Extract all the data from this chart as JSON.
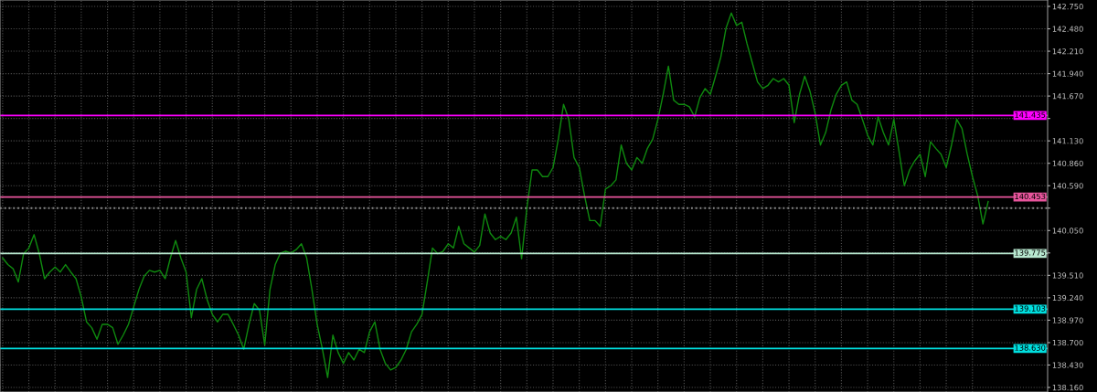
{
  "chart_data": {
    "type": "line",
    "tick_labels": "y",
    "grid": true,
    "ylim": [
      138.105,
      142.827
    ],
    "categories": [
      null,
      null,
      null,
      null,
      null,
      null,
      null,
      null,
      null,
      null,
      null,
      null,
      null,
      null,
      null,
      null,
      null,
      null,
      null,
      null,
      null,
      null,
      null,
      null,
      null,
      null,
      null,
      null,
      null,
      null,
      null,
      null,
      null,
      null,
      null,
      null,
      null,
      null,
      null,
      null,
      null,
      null,
      null,
      null,
      null,
      null,
      null,
      null,
      null,
      null,
      null,
      null,
      null,
      null,
      null,
      null,
      null,
      null,
      null,
      null,
      null,
      null,
      null,
      null,
      null,
      null,
      null,
      null,
      null,
      null,
      null,
      null,
      null,
      null,
      null,
      null,
      null,
      null,
      null,
      null,
      null,
      null,
      null,
      null,
      null,
      null,
      null,
      null,
      null,
      null,
      null,
      null,
      null,
      null,
      null,
      null,
      null,
      null,
      null,
      null,
      null,
      null,
      null,
      null,
      null,
      null,
      null,
      null,
      null,
      null,
      null,
      null,
      null,
      null,
      null,
      null,
      null,
      null,
      null,
      null,
      null,
      null,
      null,
      null,
      null,
      null,
      null,
      null,
      null,
      null,
      null,
      null,
      null,
      null,
      null,
      null,
      null,
      null,
      null,
      null,
      null,
      null,
      null,
      null,
      null,
      null,
      null,
      null,
      null,
      null,
      null,
      null,
      null,
      null,
      null,
      null,
      null,
      null,
      null,
      null,
      null,
      null,
      null,
      null,
      null,
      null,
      null,
      null,
      null,
      null,
      null,
      null,
      null,
      null,
      null,
      null,
      null,
      null,
      null,
      null,
      null,
      null,
      null,
      null,
      null,
      null,
      null,
      null,
      null
    ],
    "series": [
      {
        "color": "#0f8a0f",
        "values": [
          139.72,
          139.64,
          139.59,
          139.43,
          139.77,
          139.84,
          140.0,
          139.77,
          139.47,
          139.55,
          139.61,
          139.55,
          139.64,
          139.55,
          139.47,
          139.25,
          138.95,
          138.88,
          138.74,
          138.92,
          138.92,
          138.88,
          138.68,
          138.79,
          138.92,
          139.13,
          139.34,
          139.5,
          139.57,
          139.55,
          139.57,
          139.47,
          139.72,
          139.93,
          139.72,
          139.55,
          139.0,
          139.34,
          139.47,
          139.22,
          139.04,
          138.95,
          139.04,
          139.04,
          138.92,
          138.79,
          138.62,
          138.92,
          139.17,
          139.09,
          138.67,
          139.34,
          139.64,
          139.78,
          139.8,
          139.78,
          139.82,
          139.89,
          139.72,
          139.34,
          138.92,
          138.62,
          138.28,
          138.79,
          138.58,
          138.45,
          138.58,
          138.49,
          138.62,
          138.58,
          138.83,
          138.95,
          138.62,
          138.45,
          138.37,
          138.4,
          138.49,
          138.62,
          138.83,
          138.92,
          139.04,
          139.43,
          139.84,
          139.77,
          139.8,
          139.89,
          139.84,
          140.1,
          139.89,
          139.84,
          139.79,
          139.87,
          140.25,
          140.02,
          139.94,
          139.98,
          139.94,
          140.02,
          140.21,
          139.71,
          140.32,
          140.78,
          140.78,
          140.7,
          140.7,
          140.81,
          141.15,
          141.57,
          141.39,
          140.93,
          140.81,
          140.47,
          140.17,
          140.17,
          140.1,
          140.55,
          140.59,
          140.66,
          141.08,
          140.86,
          140.78,
          140.93,
          140.86,
          141.04,
          141.15,
          141.39,
          141.69,
          142.03,
          141.62,
          141.57,
          141.57,
          141.54,
          141.42,
          141.65,
          141.76,
          141.69,
          141.91,
          142.14,
          142.49,
          142.67,
          142.52,
          142.56,
          142.3,
          142.07,
          141.84,
          141.76,
          141.8,
          141.88,
          141.84,
          141.88,
          141.8,
          141.35,
          141.69,
          141.91,
          141.73,
          141.46,
          141.08,
          141.23,
          141.5,
          141.69,
          141.8,
          141.84,
          141.62,
          141.57,
          141.39,
          141.2,
          141.08,
          141.42,
          141.23,
          141.08,
          141.39,
          141.0,
          140.59,
          140.78,
          140.89,
          140.97,
          140.7,
          141.12,
          141.04,
          140.97,
          140.81,
          141.08,
          141.39,
          141.28,
          140.97,
          140.7,
          140.47,
          140.13,
          140.4
        ]
      }
    ],
    "yticks": [
      {
        "value": 142.75,
        "label": "142.750"
      },
      {
        "value": 142.48,
        "label": "142.480"
      },
      {
        "value": 142.21,
        "label": "142.210"
      },
      {
        "value": 141.94,
        "label": "141.940"
      },
      {
        "value": 141.67,
        "label": "141.670"
      },
      {
        "value": 141.4,
        "label": null
      },
      {
        "value": 141.13,
        "label": "141.130"
      },
      {
        "value": 140.86,
        "label": "140.860"
      },
      {
        "value": 140.59,
        "label": "140.590"
      },
      {
        "value": 140.32,
        "label": null
      },
      {
        "value": 140.05,
        "label": "140.050"
      },
      {
        "value": 139.78,
        "label": null
      },
      {
        "value": 139.51,
        "label": "139.510"
      },
      {
        "value": 139.24,
        "label": "139.240"
      },
      {
        "value": 138.97,
        "label": "138.970"
      },
      {
        "value": 138.7,
        "label": "138.700"
      },
      {
        "value": 138.43,
        "label": "138.430"
      },
      {
        "value": 138.16,
        "label": "138.160"
      }
    ],
    "ref_lines": [
      {
        "axis": "y",
        "value": 141.435,
        "label": "141.435",
        "color": "#ff00ff"
      },
      {
        "axis": "y",
        "value": 140.453,
        "label": "140.453",
        "color": "#e8559c"
      },
      {
        "axis": "y",
        "value": 140.32,
        "color": "#8a8a8a",
        "line_style": "dotted"
      },
      {
        "axis": "y",
        "value": 139.775,
        "label": "139.775",
        "color": "#b8e8d0"
      },
      {
        "axis": "y",
        "value": 139.103,
        "label": "139.103",
        "color": "#00e0e0"
      },
      {
        "axis": "y",
        "value": 138.63,
        "label": "138.630",
        "color": "#00e0e0"
      }
    ]
  }
}
